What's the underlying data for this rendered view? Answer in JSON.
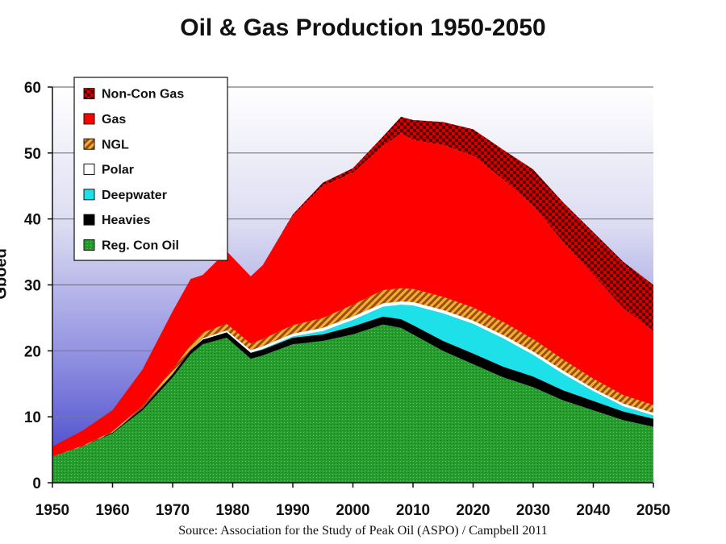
{
  "chart_data": {
    "type": "area",
    "stacked": true,
    "title": "Oil & Gas Production 1950-2050",
    "ylabel": "Gboed",
    "xlabel": "",
    "source": "Source: Association for the Study of Peak Oil (ASPO) / Campbell 2011",
    "xlim": [
      1950,
      2050
    ],
    "ylim": [
      0,
      60
    ],
    "x_ticks": [
      1950,
      1960,
      1970,
      1980,
      1990,
      2000,
      2010,
      2020,
      2030,
      2040,
      2050
    ],
    "y_ticks": [
      0,
      10,
      20,
      30,
      40,
      50,
      60
    ],
    "grid": true,
    "legend_position": "top-left",
    "x": [
      1950,
      1955,
      1960,
      1965,
      1970,
      1973,
      1975,
      1979,
      1983,
      1985,
      1990,
      1995,
      2000,
      2005,
      2008,
      2010,
      2015,
      2020,
      2025,
      2030,
      2035,
      2040,
      2045,
      2050
    ],
    "series": [
      {
        "name": "Reg. Con Oil",
        "color": "#22a02a",
        "values": [
          4,
          5.5,
          7.5,
          11,
          16,
          19.5,
          21,
          22,
          18.8,
          19.3,
          21,
          21.5,
          22.5,
          24,
          23.5,
          22.5,
          20,
          18,
          16,
          14.5,
          12.5,
          11,
          9.5,
          8.5
        ]
      },
      {
        "name": "Heavies",
        "color": "#000000",
        "values": [
          0,
          0,
          0.1,
          0.3,
          0.5,
          0.6,
          0.7,
          0.8,
          0.9,
          0.9,
          1,
          1,
          1.2,
          1.2,
          1.3,
          1.4,
          1.5,
          1.6,
          1.6,
          1.6,
          1.5,
          1.4,
          1.3,
          1.2
        ]
      },
      {
        "name": "Deepwater",
        "color": "#1ee0e8",
        "values": [
          0,
          0,
          0,
          0,
          0,
          0,
          0,
          0,
          0,
          0.1,
          0.2,
          0.5,
          1,
          1.5,
          2.2,
          3,
          4.2,
          4.5,
          4.3,
          3.3,
          2.5,
          1.5,
          0.8,
          0.5
        ]
      },
      {
        "name": "Polar",
        "color": "#ffffff",
        "values": [
          0,
          0,
          0,
          0,
          0,
          0,
          0.2,
          0.3,
          0.4,
          0.4,
          0.4,
          0.5,
          0.5,
          0.5,
          0.5,
          0.5,
          0.5,
          0.5,
          0.5,
          0.5,
          0.5,
          0.4,
          0.4,
          0.4
        ]
      },
      {
        "name": "NGL",
        "color": "#c0661a",
        "values": [
          0,
          0.1,
          0.2,
          0.4,
          0.7,
          0.8,
          0.9,
          1,
          1,
          1.1,
          1.3,
          1.5,
          1.8,
          2,
          2,
          2,
          2,
          2,
          2,
          1.9,
          1.7,
          1.5,
          1.3,
          1.2
        ]
      },
      {
        "name": "Gas",
        "color": "#ff0000",
        "values": [
          1.5,
          2.3,
          3.2,
          5.5,
          8.8,
          10,
          8.7,
          11,
          10.2,
          11.2,
          16.6,
          20,
          20,
          21.8,
          23.5,
          22.6,
          23,
          23,
          21.6,
          20.2,
          17.8,
          15.7,
          13.2,
          11.2
        ]
      },
      {
        "name": "Non-Con Gas",
        "color": "#a00000",
        "values": [
          0,
          0,
          0,
          0,
          0,
          0,
          0,
          0,
          0,
          0,
          0.2,
          0.5,
          0.7,
          1.5,
          2.5,
          3,
          3.5,
          4,
          4.5,
          5.5,
          6,
          6.5,
          7,
          7
        ]
      }
    ]
  }
}
